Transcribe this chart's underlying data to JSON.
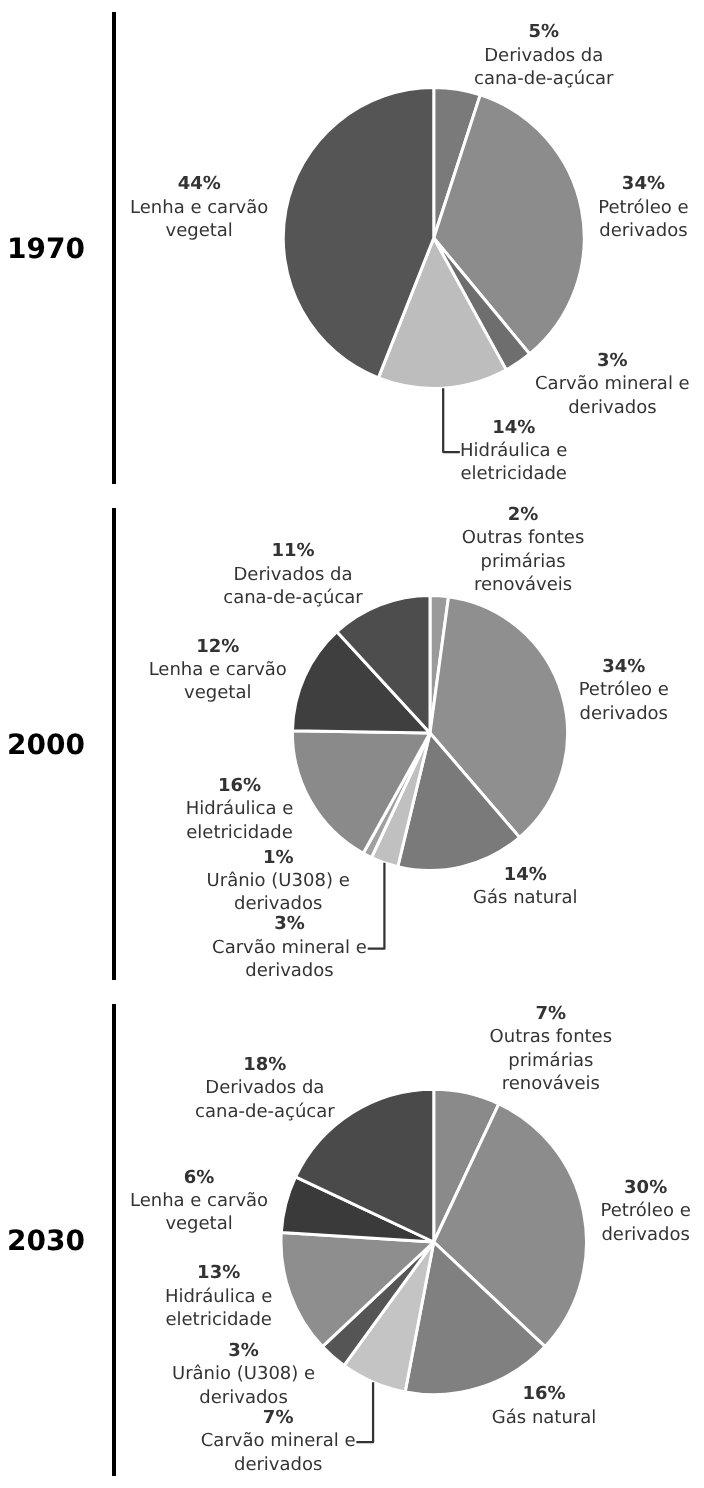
{
  "chart_data": [
    {
      "type": "pie",
      "title": "1970",
      "categories": [
        "Derivados da cana-de-açúcar",
        "Petróleo e derivados",
        "Carvão mineral e derivados",
        "Hidráulica e eletricidade",
        "Lenha e carvão vegetal"
      ],
      "values": [
        5,
        34,
        3,
        14,
        44
      ],
      "value_labels": [
        "5%",
        "34%",
        "3%",
        "14%",
        "44%"
      ],
      "colors": [
        "#7a7a7a",
        "#8c8c8c",
        "#6e6e6e",
        "#bdbdbd",
        "#555555"
      ]
    },
    {
      "type": "pie",
      "title": "2000",
      "categories": [
        "Outras fontes primárias renováveis",
        "Petróleo e derivados",
        "Gás natural",
        "Carvão mineral e derivados",
        "Urânio (U308) e derivados",
        "Hidráulica e eletricidade",
        "Lenha e carvão vegetal",
        "Derivados da cana-de-açúcar"
      ],
      "values": [
        2,
        34,
        14,
        3,
        1,
        16,
        12,
        11
      ],
      "value_labels": [
        "2%",
        "34%",
        "14%",
        "3%",
        "1%",
        "16%",
        "12%",
        "11%"
      ],
      "colors": [
        "#9a9a9a",
        "#8f8f8f",
        "#7a7a7a",
        "#c0c0c0",
        "#a0a0a0",
        "#8a8a8a",
        "#3f3f3f",
        "#4d4d4d"
      ]
    },
    {
      "type": "pie",
      "title": "2030",
      "categories": [
        "Outras fontes primárias renováveis",
        "Petróleo e derivados",
        "Gás natural",
        "Carvão mineral e derivados",
        "Urânio (U308) e derivados",
        "Hidráulica e eletricidade",
        "Lenha e carvão vegetal",
        "Derivados da cana-de-açúcar"
      ],
      "values": [
        7,
        30,
        16,
        7,
        3,
        13,
        6,
        18
      ],
      "value_labels": [
        "7%",
        "30%",
        "16%",
        "7%",
        "3%",
        "13%",
        "6%",
        "18%"
      ],
      "colors": [
        "#8a8a8a",
        "#8c8c8c",
        "#808080",
        "#c4c4c4",
        "#555555",
        "#8e8e8e",
        "#3a3a3a",
        "#4a4a4a"
      ]
    }
  ]
}
